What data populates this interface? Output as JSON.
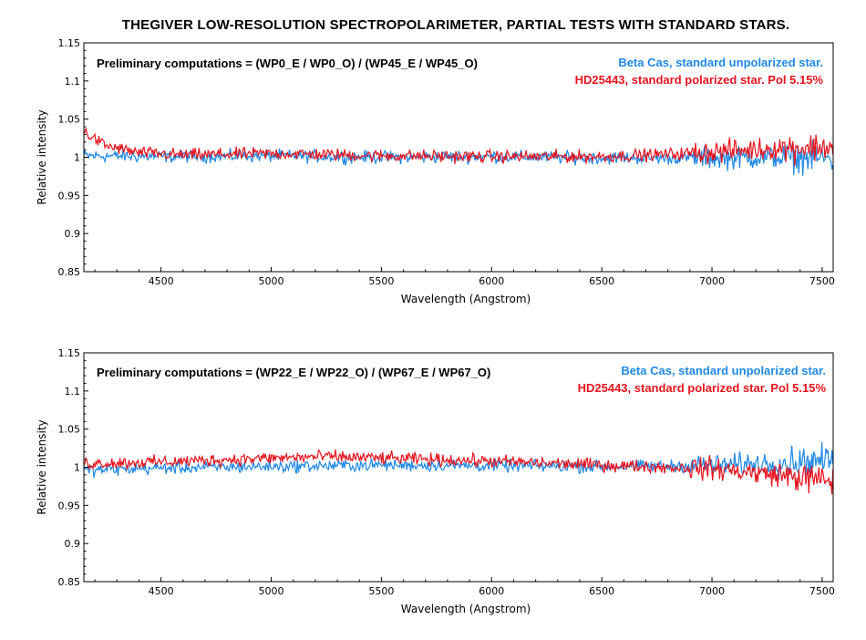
{
  "title": "THEGIVER  LOW-RESOLUTION  SPECTROPOLARIMETER,  PARTIAL  TESTS  WITH  STANDARD  STARS.",
  "colors": {
    "beta": "#1e88e5",
    "hd": "#e8141e"
  },
  "chart_data": [
    {
      "type": "line",
      "xlabel": "Wavelength (Angstrom)",
      "ylabel": "Relative intensity",
      "xlim": [
        4150,
        7550
      ],
      "ylim": [
        0.85,
        1.15
      ],
      "xticks": [
        4500,
        5000,
        5500,
        6000,
        6500,
        7000,
        7500
      ],
      "yticks": [
        0.85,
        0.9,
        0.95,
        1,
        1.05,
        1.1,
        1.15
      ],
      "ytick_labels": [
        "0.85",
        "0.9",
        "0.95",
        "1",
        "1.05",
        "1.1",
        "1.15"
      ],
      "annotation": "Preliminary computations =  (WP0_E / WP0_O) / (WP45_E  / WP45_O)",
      "series": [
        {
          "name": "Beta Cas, standard unpolarized star.",
          "color": "#1e88e5",
          "noise": 0.004,
          "x": [
            4150,
            4500,
            5000,
            5500,
            6000,
            6500,
            7000,
            7300,
            7550
          ],
          "y": [
            1.002,
            1.001,
            1.002,
            1.0,
            1.001,
            0.999,
            0.999,
            1.0,
            0.998
          ]
        },
        {
          "name": "HD25443, standard polarized star. Pol 5.15%",
          "color": "#e8141e",
          "noise": 0.004,
          "x": [
            4150,
            4250,
            4400,
            4600,
            5000,
            5500,
            6000,
            6500,
            6800,
            7000,
            7300,
            7550
          ],
          "y": [
            1.033,
            1.015,
            1.006,
            1.003,
            1.005,
            1.002,
            1.001,
            1.001,
            1.004,
            1.007,
            1.012,
            1.014
          ]
        }
      ]
    },
    {
      "type": "line",
      "xlabel": "Wavelength (Angstrom)",
      "ylabel": "Relative intensity",
      "xlim": [
        4150,
        7550
      ],
      "ylim": [
        0.85,
        1.15
      ],
      "xticks": [
        4500,
        5000,
        5500,
        6000,
        6500,
        7000,
        7500
      ],
      "yticks": [
        0.85,
        0.9,
        0.95,
        1,
        1.05,
        1.1,
        1.15
      ],
      "ytick_labels": [
        "0.85",
        "0.9",
        "0.95",
        "1",
        "1.05",
        "1.1",
        "1.15"
      ],
      "annotation": "Preliminary computations = (WP22_E / WP22_O) / (WP67_E  / WP67_O)",
      "series": [
        {
          "name": "Beta Cas, standard unpolarized star.",
          "color": "#1e88e5",
          "noise": 0.004,
          "x": [
            4150,
            4500,
            5000,
            5500,
            6000,
            6500,
            7000,
            7300,
            7550
          ],
          "y": [
            0.996,
            0.999,
            1.001,
            1.003,
            1.002,
            1.001,
            1.002,
            1.006,
            1.01
          ]
        },
        {
          "name": "HD25443, standard polarized star. Pol 5.15%",
          "color": "#e8141e",
          "noise": 0.004,
          "x": [
            4150,
            4500,
            5000,
            5250,
            5500,
            6000,
            6500,
            7000,
            7300,
            7550
          ],
          "y": [
            1.005,
            1.007,
            1.012,
            1.014,
            1.012,
            1.008,
            1.003,
            0.998,
            0.99,
            0.982
          ]
        }
      ]
    }
  ]
}
